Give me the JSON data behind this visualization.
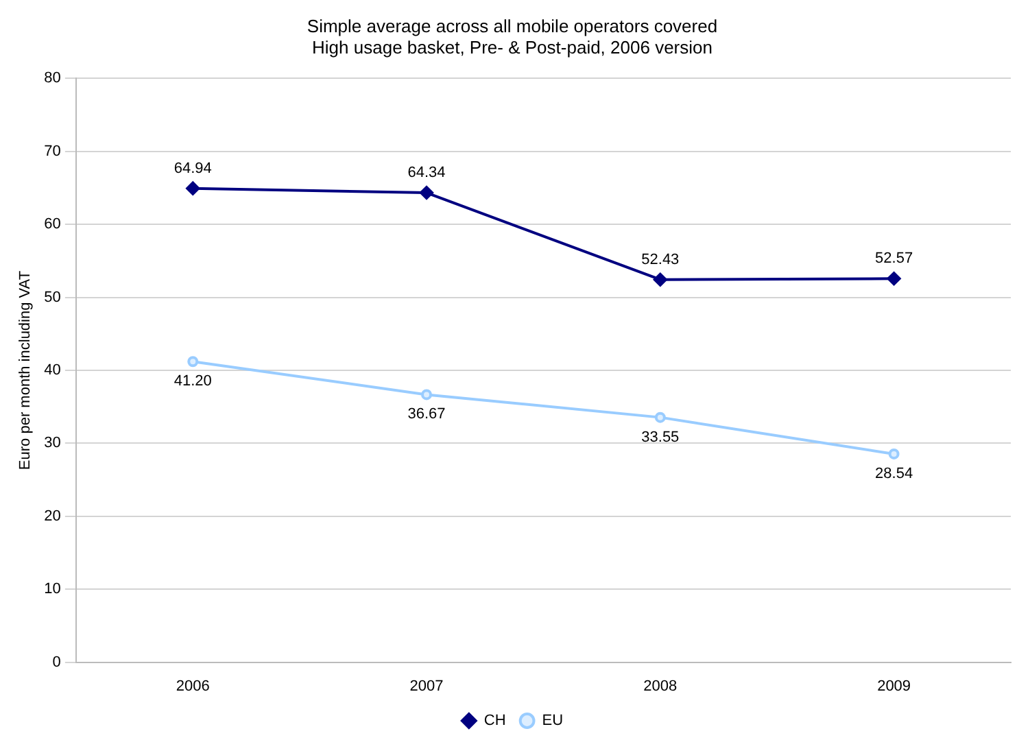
{
  "chart_data": {
    "type": "line",
    "title": "Simple average across all mobile operators covered",
    "subtitle": "High usage basket, Pre- & Post-paid, 2006 version",
    "ylabel": "Euro per month including VAT",
    "categories": [
      "2006",
      "2007",
      "2008",
      "2009"
    ],
    "series": [
      {
        "name": "CH",
        "color": "#000080",
        "marker": "diamond",
        "values": [
          64.94,
          64.34,
          52.43,
          52.57
        ],
        "value_labels": [
          "64.94",
          "64.34",
          "52.43",
          "52.57"
        ]
      },
      {
        "name": "EU",
        "color": "#99ccff",
        "marker": "circle",
        "values": [
          41.2,
          36.67,
          33.55,
          28.54
        ],
        "value_labels": [
          "41.20",
          "36.67",
          "33.55",
          "28.54"
        ]
      }
    ],
    "ylim": [
      0,
      80
    ],
    "yticks": [
      0,
      10,
      20,
      30,
      40,
      50,
      60,
      70,
      80
    ],
    "grid": "y",
    "legend": "bottom",
    "line_style": "solid"
  }
}
